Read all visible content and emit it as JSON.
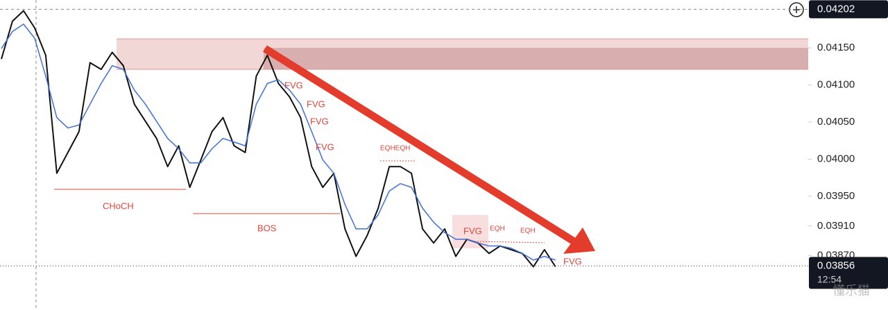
{
  "chart_data": {
    "type": "line",
    "x": [
      0,
      1,
      2,
      3,
      4,
      5,
      6,
      7,
      8,
      9,
      10,
      11,
      12,
      13,
      14,
      15,
      16,
      17,
      18,
      19,
      20,
      21,
      22,
      23,
      24,
      25,
      26,
      27,
      28,
      29,
      30,
      31,
      32,
      33,
      34,
      35,
      36,
      37,
      38,
      39,
      40,
      41,
      42,
      43,
      44,
      45,
      46,
      47,
      48,
      49,
      50
    ],
    "series": [
      {
        "name": "price",
        "color": "#111111",
        "values": [
          0.04135,
          0.04186,
          0.042,
          0.04177,
          0.0414,
          0.03981,
          0.04009,
          0.04037,
          0.0413,
          0.04121,
          0.04144,
          0.04126,
          0.04074,
          0.04051,
          0.04028,
          0.0399,
          0.04018,
          0.03962,
          0.03999,
          0.04037,
          0.04056,
          0.04018,
          0.04009,
          0.04112,
          0.0414,
          0.04102,
          0.04084,
          0.04056,
          0.0399,
          0.03962,
          0.03981,
          0.03906,
          0.03869,
          0.03897,
          0.03934,
          0.0399,
          0.0399,
          0.03981,
          0.03906,
          0.03887,
          0.03906,
          0.03869,
          0.03892,
          0.03887,
          0.03873,
          0.03883,
          0.03878,
          0.03873,
          0.03855,
          0.03878,
          0.03855
        ]
      },
      {
        "name": "ma",
        "color": "#3f6fd8",
        "values": [
          0.04149,
          0.04172,
          0.04182,
          0.04163,
          0.04112,
          0.04056,
          0.04042,
          0.04046,
          0.04074,
          0.04102,
          0.04126,
          0.04121,
          0.04093,
          0.04074,
          0.04051,
          0.04028,
          0.04014,
          0.03995,
          0.03995,
          0.04014,
          0.04028,
          0.04023,
          0.04018,
          0.04074,
          0.04102,
          0.04107,
          0.04093,
          0.04074,
          0.04037,
          0.03999,
          0.03981,
          0.03939,
          0.03906,
          0.03906,
          0.03925,
          0.03957,
          0.03967,
          0.03962,
          0.03934,
          0.03915,
          0.03901,
          0.03892,
          0.03892,
          0.03887,
          0.03883,
          0.03883,
          0.0388,
          0.03873,
          0.03864,
          0.03869,
          0.03864
        ]
      }
    ],
    "xlim": [
      0,
      72.8
    ],
    "ylim": [
      0.037967,
      0.042145
    ],
    "yticks": [
      {
        "value": 0.0415,
        "label": "0.04150"
      },
      {
        "value": 0.041,
        "label": "0.04100"
      },
      {
        "value": 0.0405,
        "label": "0.04050"
      },
      {
        "value": 0.04,
        "label": "0.04000"
      },
      {
        "value": 0.0395,
        "label": "0.03950"
      },
      {
        "value": 0.0391,
        "label": "0.03910"
      },
      {
        "value": 0.0387,
        "label": "0.03870"
      }
    ],
    "crosshair_price": 0.04202,
    "last_price": 0.03856,
    "time_label": "12:54",
    "annotations": [
      "FVG",
      "FVG",
      "FVG",
      "FVG",
      "EQHEQH",
      "FVG",
      "EQH",
      "EQH",
      "FVG",
      "CHoCH",
      "BOS"
    ],
    "watermark": "懂乐猫"
  }
}
